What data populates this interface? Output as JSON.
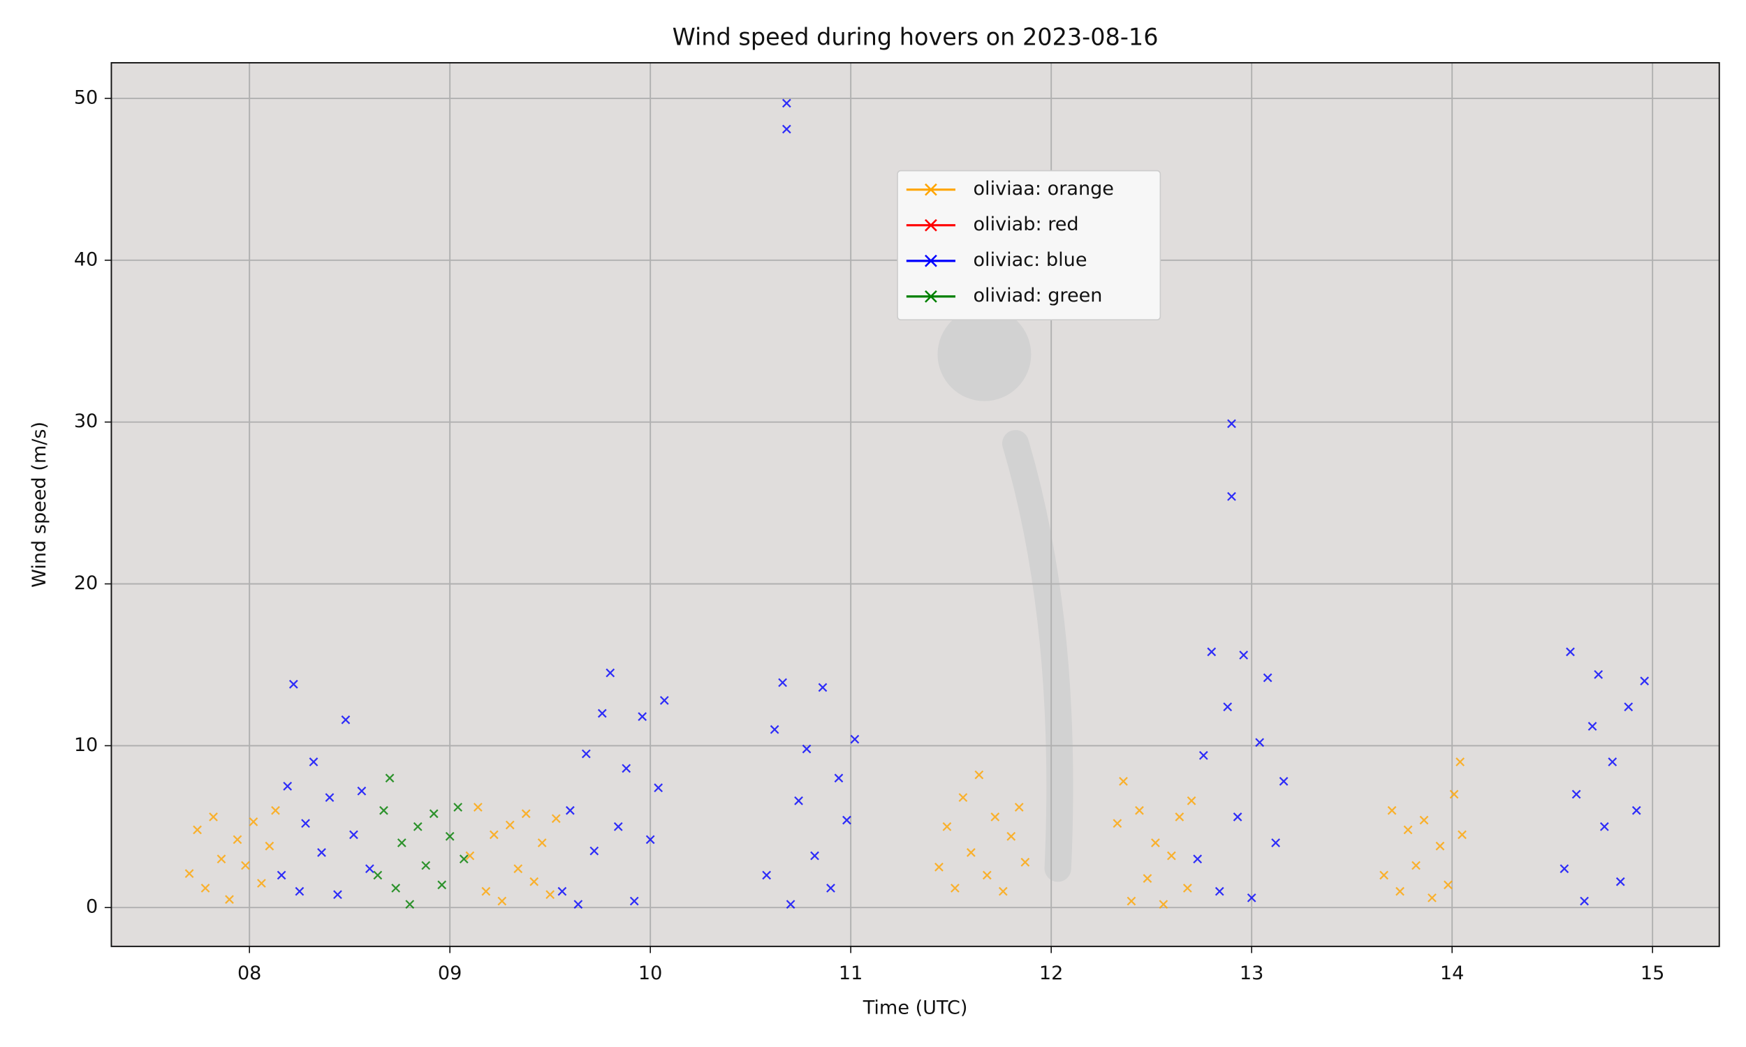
{
  "chart_data": {
    "type": "scatter",
    "title": "Wind speed during hovers on 2023-08-16",
    "xlabel": "Time (UTC)",
    "ylabel": "Wind speed (m/s)",
    "xlim": [
      7.311,
      15.333
    ],
    "ylim": [
      -2.4,
      52.2
    ],
    "xticks": [
      {
        "value": 8,
        "label": "08"
      },
      {
        "value": 9,
        "label": "09"
      },
      10,
      11,
      12,
      13,
      14,
      15
    ],
    "yticks": [
      0,
      10,
      20,
      30,
      40,
      50
    ],
    "grid": true,
    "legend": "upper center",
    "series": [
      {
        "name": "oliviaa: orange",
        "color": "#ffa500",
        "x": [
          7.7,
          7.74,
          7.78,
          7.82,
          7.86,
          7.9,
          7.94,
          7.98,
          8.02,
          8.06,
          8.1,
          8.13,
          9.1,
          9.14,
          9.18,
          9.22,
          9.26,
          9.3,
          9.34,
          9.38,
          9.42,
          9.46,
          9.5,
          9.53,
          11.44,
          11.48,
          11.52,
          11.56,
          11.6,
          11.64,
          11.68,
          11.72,
          11.76,
          11.8,
          11.84,
          11.87,
          12.33,
          12.36,
          12.4,
          12.44,
          12.48,
          12.52,
          12.56,
          12.6,
          12.64,
          12.68,
          12.7,
          13.66,
          13.7,
          13.74,
          13.78,
          13.82,
          13.86,
          13.9,
          13.94,
          13.98,
          14.01,
          14.04,
          14.05
        ],
        "values": [
          2.1,
          4.8,
          1.2,
          5.6,
          3.0,
          0.5,
          4.2,
          2.6,
          5.3,
          1.5,
          3.8,
          6.0,
          3.2,
          6.2,
          1.0,
          4.5,
          0.4,
          5.1,
          2.4,
          5.8,
          1.6,
          4.0,
          0.8,
          5.5,
          2.5,
          5.0,
          1.2,
          6.8,
          3.4,
          8.2,
          2.0,
          5.6,
          1.0,
          4.4,
          6.2,
          2.8,
          5.2,
          7.8,
          0.4,
          6.0,
          1.8,
          4.0,
          0.2,
          3.2,
          5.6,
          1.2,
          6.6,
          2.0,
          6.0,
          1.0,
          4.8,
          2.6,
          5.4,
          0.6,
          3.8,
          1.4,
          7.0,
          9.0,
          4.5
        ]
      },
      {
        "name": "oliviab: red",
        "color": "#ff0000",
        "x": [],
        "values": []
      },
      {
        "name": "oliviac: blue",
        "color": "#0000ff",
        "x": [
          8.16,
          8.19,
          8.22,
          8.25,
          8.28,
          8.32,
          8.36,
          8.4,
          8.44,
          8.48,
          8.52,
          8.56,
          8.6,
          9.56,
          9.6,
          9.64,
          9.68,
          9.72,
          9.76,
          9.8,
          9.84,
          9.88,
          9.92,
          9.96,
          10.0,
          10.04,
          10.07,
          10.58,
          10.62,
          10.66,
          10.68,
          10.68,
          10.7,
          10.74,
          10.78,
          10.82,
          10.86,
          10.9,
          10.94,
          10.98,
          11.02,
          12.73,
          12.76,
          12.8,
          12.84,
          12.88,
          12.9,
          12.9,
          12.93,
          12.96,
          13.0,
          13.04,
          13.08,
          13.12,
          13.16,
          14.56,
          14.59,
          14.62,
          14.66,
          14.7,
          14.73,
          14.76,
          14.8,
          14.84,
          14.88,
          14.92,
          14.96
        ],
        "values": [
          2.0,
          7.5,
          13.8,
          1.0,
          5.2,
          9.0,
          3.4,
          6.8,
          0.8,
          11.6,
          4.5,
          7.2,
          2.4,
          1.0,
          6.0,
          0.2,
          9.5,
          3.5,
          12.0,
          14.5,
          5.0,
          8.6,
          0.4,
          11.8,
          4.2,
          7.4,
          12.8,
          2.0,
          11.0,
          13.9,
          49.7,
          48.1,
          0.2,
          6.6,
          9.8,
          3.2,
          13.6,
          1.2,
          8.0,
          5.4,
          10.4,
          3.0,
          9.4,
          15.8,
          1.0,
          12.4,
          29.9,
          25.4,
          5.6,
          15.6,
          0.6,
          10.2,
          14.2,
          4.0,
          7.8,
          2.4,
          15.8,
          7.0,
          0.4,
          11.2,
          14.4,
          5.0,
          9.0,
          1.6,
          12.4,
          6.0,
          14.0
        ]
      },
      {
        "name": "oliviad: green",
        "color": "#008000",
        "x": [
          8.64,
          8.67,
          8.7,
          8.73,
          8.76,
          8.8,
          8.84,
          8.88,
          8.92,
          8.96,
          9.0,
          9.04,
          9.07
        ],
        "values": [
          2.0,
          6.0,
          8.0,
          1.2,
          4.0,
          0.2,
          5.0,
          2.6,
          5.8,
          1.4,
          4.4,
          6.2,
          3.0
        ]
      }
    ]
  }
}
